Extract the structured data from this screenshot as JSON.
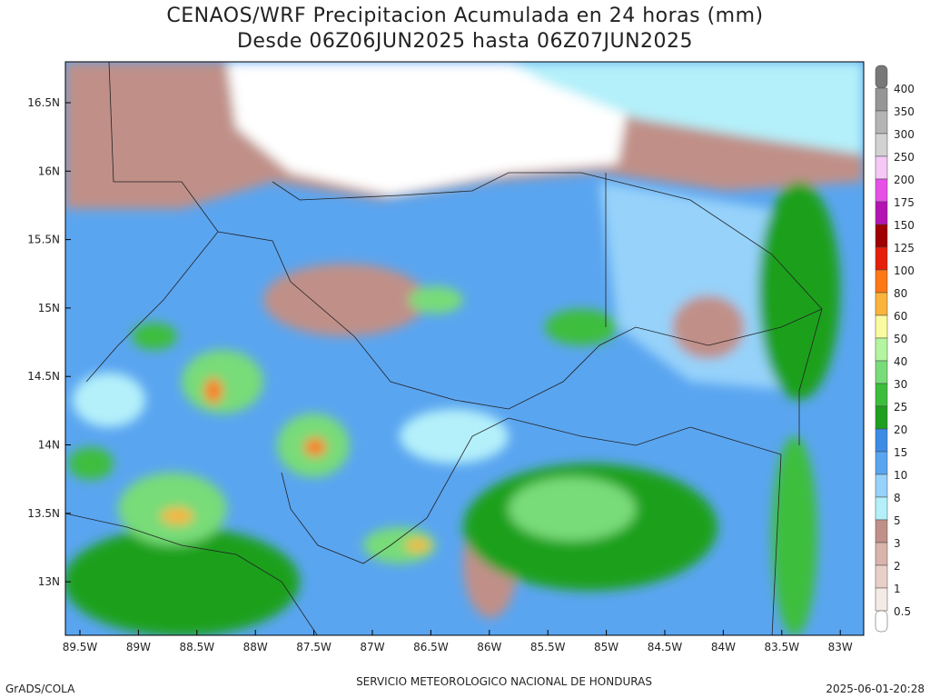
{
  "header": {
    "title": [
      "CENAOS/WRF Precipitacion Acumulada en 24 horas (mm)",
      "Desde 06Z06JUN2025 hasta 06Z07JUN2025"
    ]
  },
  "axes": {
    "lat": [
      "16.5N",
      "16N",
      "15.5N",
      "15N",
      "14.5N",
      "14N",
      "13.5N",
      "13N"
    ],
    "lon": [
      "89.5W",
      "89W",
      "88.5W",
      "88W",
      "87.5W",
      "87W",
      "86.5W",
      "86W",
      "85.5W",
      "85W",
      "84.5W",
      "84W",
      "83.5W",
      "83W"
    ]
  },
  "colorbar": {
    "labels": [
      400,
      350,
      300,
      250,
      200,
      175,
      150,
      125,
      100,
      80,
      60,
      50,
      40,
      30,
      25,
      20,
      15,
      10,
      8,
      5,
      3,
      2,
      1,
      0.5
    ],
    "colors": [
      "#787878",
      "#969696",
      "#b4b4b4",
      "#d2d2d2",
      "#f5c8f5",
      "#e650e6",
      "#b414b4",
      "#a00000",
      "#e61e0a",
      "#ff7814",
      "#fab43c",
      "#fafaa0",
      "#b4f5a0",
      "#78dc78",
      "#3cbe3c",
      "#1ea01e",
      "#3c8ce6",
      "#5aa5f0",
      "#96d2fa",
      "#b4f0fa",
      "#c09088",
      "#d8b4ac",
      "#e8d0c8",
      "#f5ebe6",
      "#ffffff"
    ]
  },
  "footer": {
    "left": "GrADS/COLA",
    "center": "SERVICIO METEOROLOGICO NACIONAL DE HONDURAS",
    "right": "2025-06-01-20:28"
  }
}
